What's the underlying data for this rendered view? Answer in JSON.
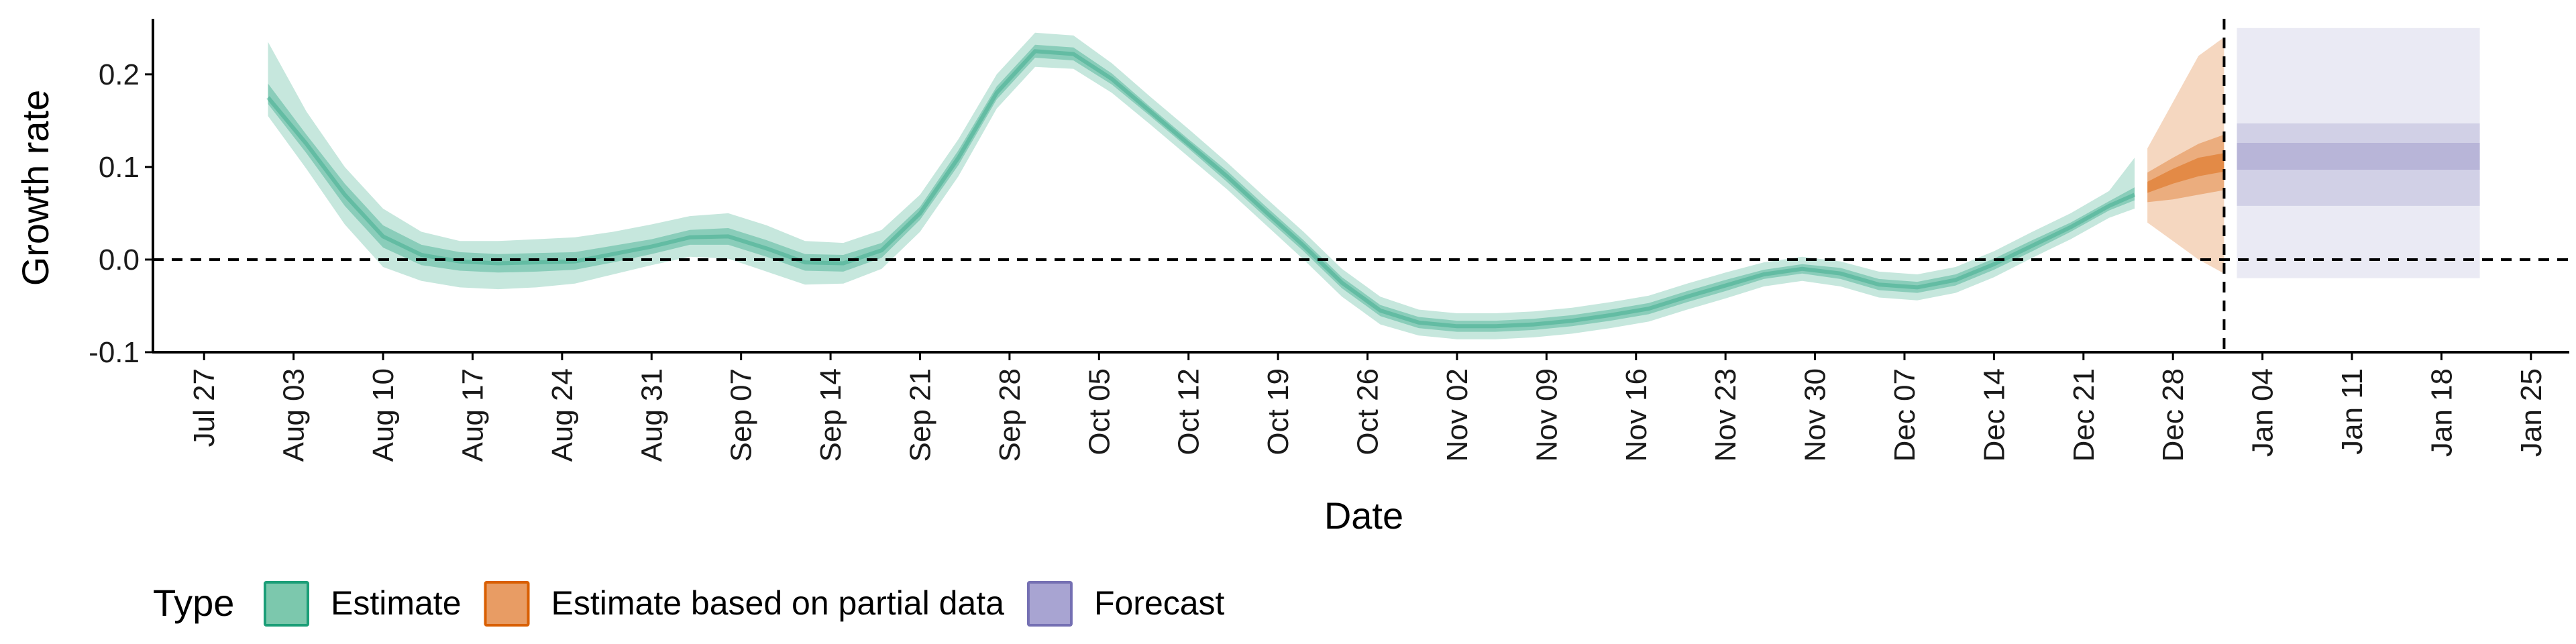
{
  "chart_data": {
    "type": "area",
    "xlabel": "Date",
    "ylabel": "Growth rate",
    "ylim": [
      -0.1,
      0.26
    ],
    "xlim": [
      "2020-07-23",
      "2021-01-28"
    ],
    "y_ticks": [
      -0.1,
      0.0,
      0.1,
      0.2
    ],
    "y_tick_labels": [
      "-0.1",
      "0.0",
      "0.1",
      "0.2"
    ],
    "x_ticks": [
      "2020-07-27",
      "2020-08-03",
      "2020-08-10",
      "2020-08-17",
      "2020-08-24",
      "2020-08-31",
      "2020-09-07",
      "2020-09-14",
      "2020-09-21",
      "2020-09-28",
      "2020-10-05",
      "2020-10-12",
      "2020-10-19",
      "2020-10-26",
      "2020-11-02",
      "2020-11-09",
      "2020-11-16",
      "2020-11-23",
      "2020-11-30",
      "2020-12-07",
      "2020-12-14",
      "2020-12-21",
      "2020-12-28",
      "2021-01-04",
      "2021-01-11",
      "2021-01-18",
      "2021-01-25"
    ],
    "x_tick_labels": [
      "Jul 27",
      "Aug 03",
      "Aug 10",
      "Aug 17",
      "Aug 24",
      "Aug 31",
      "Sep 07",
      "Sep 14",
      "Sep 21",
      "Sep 28",
      "Oct 05",
      "Oct 12",
      "Oct 19",
      "Oct 26",
      "Nov 02",
      "Nov 09",
      "Nov 16",
      "Nov 23",
      "Nov 30",
      "Dec 07",
      "Dec 14",
      "Dec 21",
      "Dec 28",
      "Jan 04",
      "Jan 11",
      "Jan 18",
      "Jan 25"
    ],
    "hline_y": 0.0,
    "vline_date": "2021-01-01",
    "grid": false,
    "legend_position": "bottom",
    "legend_title": "Type",
    "series": [
      {
        "name": "Estimate",
        "color": "#1b9e77",
        "x": [
          "2020-08-01",
          "2020-08-04",
          "2020-08-07",
          "2020-08-10",
          "2020-08-13",
          "2020-08-16",
          "2020-08-19",
          "2020-08-22",
          "2020-08-25",
          "2020-08-28",
          "2020-08-31",
          "2020-09-03",
          "2020-09-06",
          "2020-09-09",
          "2020-09-12",
          "2020-09-15",
          "2020-09-18",
          "2020-09-21",
          "2020-09-24",
          "2020-09-27",
          "2020-09-30",
          "2020-10-03",
          "2020-10-06",
          "2020-10-09",
          "2020-10-12",
          "2020-10-15",
          "2020-10-18",
          "2020-10-21",
          "2020-10-24",
          "2020-10-27",
          "2020-10-30",
          "2020-11-02",
          "2020-11-05",
          "2020-11-08",
          "2020-11-11",
          "2020-11-14",
          "2020-11-17",
          "2020-11-20",
          "2020-11-23",
          "2020-11-26",
          "2020-11-29",
          "2020-12-02",
          "2020-12-05",
          "2020-12-08",
          "2020-12-11",
          "2020-12-14",
          "2020-12-17",
          "2020-12-20",
          "2020-12-23",
          "2020-12-25"
        ],
        "mean": [
          0.175,
          0.125,
          0.07,
          0.025,
          0.005,
          -0.002,
          -0.004,
          -0.003,
          -0.002,
          0.006,
          0.014,
          0.024,
          0.025,
          0.012,
          -0.003,
          -0.004,
          0.01,
          0.05,
          0.11,
          0.18,
          0.225,
          0.222,
          0.195,
          0.16,
          0.125,
          0.09,
          0.052,
          0.015,
          -0.025,
          -0.055,
          -0.068,
          -0.072,
          -0.072,
          -0.07,
          -0.066,
          -0.06,
          -0.053,
          -0.04,
          -0.028,
          -0.016,
          -0.01,
          -0.015,
          -0.027,
          -0.03,
          -0.022,
          -0.005,
          0.015,
          0.035,
          0.058,
          0.07
        ],
        "lower_90": [
          0.155,
          0.098,
          0.038,
          -0.008,
          -0.023,
          -0.03,
          -0.032,
          -0.03,
          -0.026,
          -0.016,
          -0.006,
          0.003,
          0.001,
          -0.013,
          -0.027,
          -0.026,
          -0.01,
          0.03,
          0.09,
          0.163,
          0.208,
          0.206,
          0.18,
          0.146,
          0.111,
          0.076,
          0.038,
          0.0,
          -0.04,
          -0.07,
          -0.082,
          -0.086,
          -0.086,
          -0.084,
          -0.08,
          -0.074,
          -0.067,
          -0.054,
          -0.042,
          -0.029,
          -0.023,
          -0.029,
          -0.041,
          -0.044,
          -0.036,
          -0.019,
          0.002,
          0.022,
          0.045,
          0.055
        ],
        "upper_90": [
          0.235,
          0.16,
          0.1,
          0.055,
          0.03,
          0.02,
          0.02,
          0.022,
          0.024,
          0.03,
          0.038,
          0.047,
          0.05,
          0.037,
          0.02,
          0.018,
          0.032,
          0.07,
          0.13,
          0.2,
          0.245,
          0.242,
          0.212,
          0.176,
          0.141,
          0.105,
          0.067,
          0.03,
          -0.01,
          -0.04,
          -0.054,
          -0.058,
          -0.058,
          -0.056,
          -0.052,
          -0.046,
          -0.039,
          -0.026,
          -0.014,
          -0.003,
          0.003,
          -0.002,
          -0.013,
          -0.016,
          -0.008,
          0.009,
          0.03,
          0.05,
          0.074,
          0.11
        ],
        "lower_50": [
          0.168,
          0.115,
          0.058,
          0.013,
          -0.006,
          -0.012,
          -0.014,
          -0.013,
          -0.011,
          -0.003,
          0.006,
          0.016,
          0.016,
          0.003,
          -0.012,
          -0.013,
          0.002,
          0.043,
          0.102,
          0.173,
          0.218,
          0.215,
          0.189,
          0.155,
          0.12,
          0.084,
          0.046,
          0.009,
          -0.031,
          -0.061,
          -0.074,
          -0.078,
          -0.078,
          -0.076,
          -0.072,
          -0.066,
          -0.059,
          -0.046,
          -0.034,
          -0.021,
          -0.015,
          -0.021,
          -0.033,
          -0.036,
          -0.028,
          -0.011,
          0.009,
          0.03,
          0.053,
          0.064
        ],
        "upper_50": [
          0.19,
          0.135,
          0.082,
          0.037,
          0.016,
          0.008,
          0.006,
          0.007,
          0.008,
          0.015,
          0.022,
          0.032,
          0.034,
          0.021,
          0.006,
          0.005,
          0.018,
          0.057,
          0.118,
          0.187,
          0.232,
          0.229,
          0.201,
          0.165,
          0.13,
          0.096,
          0.058,
          0.021,
          -0.019,
          -0.049,
          -0.062,
          -0.066,
          -0.066,
          -0.064,
          -0.06,
          -0.054,
          -0.047,
          -0.034,
          -0.022,
          -0.011,
          -0.005,
          -0.009,
          -0.021,
          -0.024,
          -0.016,
          0.001,
          0.021,
          0.04,
          0.063,
          0.078
        ]
      },
      {
        "name": "Estimate based on partial data",
        "color": "#d95f02",
        "x": [
          "2020-12-26",
          "2020-12-28",
          "2020-12-30",
          "2021-01-01"
        ],
        "mean": [
          0.078,
          0.09,
          0.1,
          0.105
        ],
        "lower_90": [
          0.04,
          0.02,
          0.0,
          -0.015
        ],
        "upper_90": [
          0.12,
          0.17,
          0.22,
          0.24
        ],
        "lower_50": [
          0.062,
          0.065,
          0.07,
          0.075
        ],
        "upper_50": [
          0.094,
          0.11,
          0.125,
          0.135
        ],
        "lower_20": [
          0.072,
          0.082,
          0.09,
          0.095
        ],
        "upper_20": [
          0.084,
          0.098,
          0.11,
          0.115
        ]
      },
      {
        "name": "Forecast",
        "color": "#7570b3",
        "x": [
          "2021-01-02",
          "2021-01-21"
        ],
        "mean": [
          0.11,
          0.11
        ],
        "lower_90": [
          -0.02,
          -0.02
        ],
        "upper_90": [
          0.25,
          0.25
        ],
        "lower_50": [
          0.058,
          0.058
        ],
        "upper_50": [
          0.147,
          0.147
        ],
        "lower_20": [
          0.097,
          0.097
        ],
        "upper_20": [
          0.126,
          0.126
        ]
      }
    ],
    "legend": [
      {
        "label": "Estimate",
        "fill": "#7cc8ad",
        "stroke": "#1b9e77"
      },
      {
        "label": "Estimate based on partial data",
        "fill": "#e89c64",
        "stroke": "#d95f02"
      },
      {
        "label": "Forecast",
        "fill": "#a8a4d2",
        "stroke": "#7570b3"
      }
    ]
  }
}
